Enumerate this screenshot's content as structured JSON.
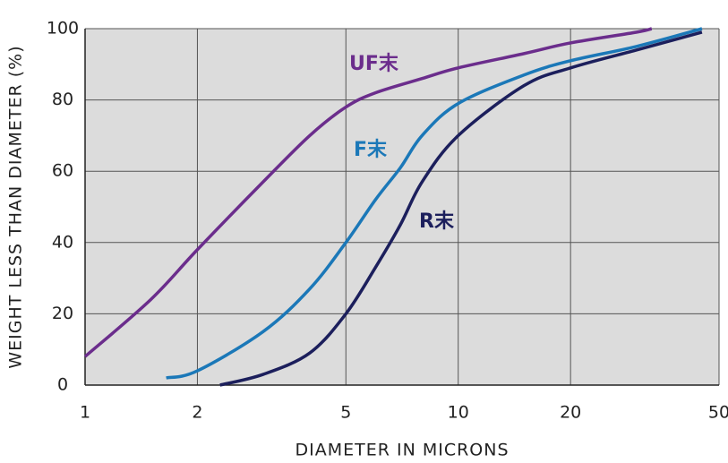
{
  "chart_data": {
    "type": "line",
    "xlabel": "DIAMETER IN MICRONS",
    "ylabel": "WEIGHT LESS THAN DIAMETER (%)",
    "xscale": "log",
    "xlim": [
      1,
      50
    ],
    "xticks": [
      1,
      2,
      5,
      10,
      20,
      50
    ],
    "ylim": [
      0,
      100
    ],
    "yticks": [
      0,
      20,
      40,
      60,
      80,
      100
    ],
    "grid": true,
    "series": [
      {
        "name": "UF末",
        "color": "#6b2d8c",
        "x": [
          1,
          1.5,
          2,
          3,
          4,
          5,
          6,
          8,
          10,
          15,
          20,
          30,
          33
        ],
        "values": [
          8,
          24,
          38,
          57,
          70,
          78,
          82,
          86,
          89,
          93,
          96,
          99,
          100
        ]
      },
      {
        "name": "F末",
        "color": "#1b78b8",
        "x": [
          1.65,
          2,
          3,
          4,
          5,
          6,
          7,
          8,
          10,
          15,
          20,
          30,
          45
        ],
        "values": [
          2,
          4,
          15,
          27,
          40,
          52,
          61,
          70,
          79,
          87,
          91,
          95,
          100
        ]
      },
      {
        "name": "R末",
        "color": "#1c1f5c",
        "x": [
          2.3,
          3,
          4,
          5,
          6,
          7,
          8,
          10,
          15,
          20,
          30,
          45
        ],
        "values": [
          0,
          3,
          9,
          20,
          33,
          45,
          57,
          70,
          84,
          89,
          94,
          99
        ]
      }
    ]
  }
}
